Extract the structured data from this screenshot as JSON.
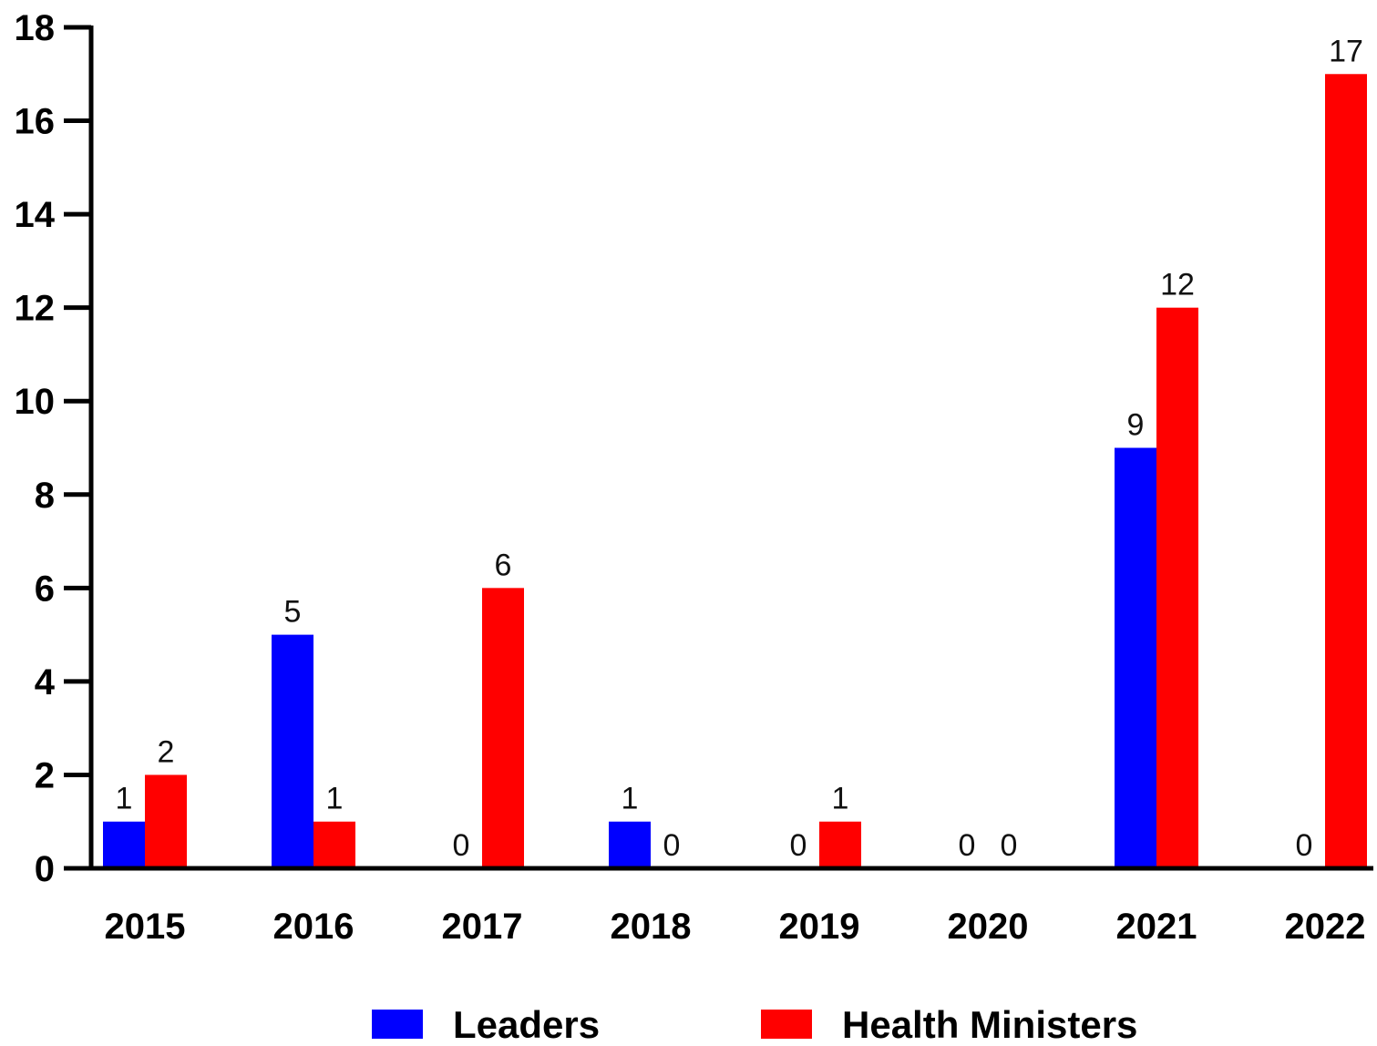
{
  "chart_data": {
    "type": "bar",
    "title": "",
    "xlabel": "",
    "ylabel": "",
    "categories": [
      "2015",
      "2016",
      "2017",
      "2018",
      "2019",
      "2020",
      "2021",
      "2022"
    ],
    "series": [
      {
        "name": "Leaders",
        "color": "#0000ff",
        "values": [
          1,
          5,
          0,
          1,
          0,
          0,
          9,
          0
        ]
      },
      {
        "name": "Health Ministers",
        "color": "#ff0000",
        "values": [
          2,
          1,
          6,
          0,
          1,
          0,
          12,
          17
        ]
      }
    ],
    "ylim": [
      0,
      18
    ],
    "yticks": [
      0,
      2,
      4,
      6,
      8,
      10,
      12,
      14,
      16,
      18
    ],
    "grid": false,
    "legend_position": "bottom-center",
    "data_labels": true
  }
}
